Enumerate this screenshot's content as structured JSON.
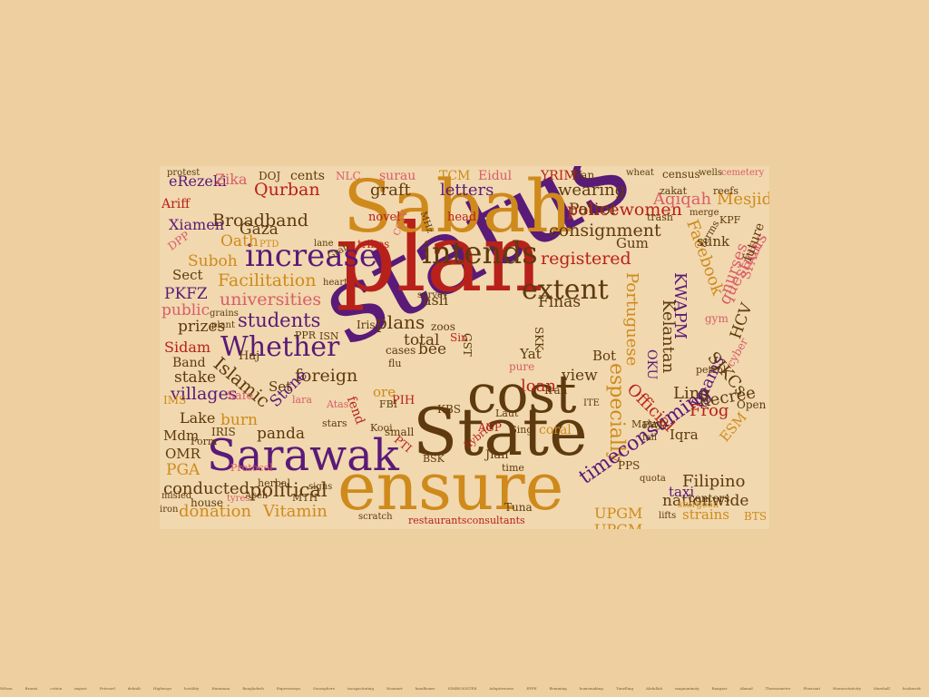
{
  "palette": {
    "background": "#edcfa0",
    "purple": "#5a1a78",
    "red": "#b8211a",
    "gold": "#cf8a1c",
    "brown": "#5e3a0e",
    "pink": "#d95d6b",
    "tan": "#9a7a50"
  },
  "cloud_words": [
    {
      "t": "status",
      "c": "purple"
    },
    {
      "t": "plan",
      "c": "red"
    },
    {
      "t": "Sabah",
      "c": "gold"
    },
    {
      "t": "State",
      "c": "brown"
    },
    {
      "t": "ensure",
      "c": "gold"
    },
    {
      "t": "cost",
      "c": "brown"
    },
    {
      "t": "Sarawak",
      "c": "purple"
    },
    {
      "t": "increase",
      "c": "purple"
    },
    {
      "t": "intends",
      "c": "brown"
    },
    {
      "t": "Whether",
      "c": "purple"
    },
    {
      "t": "extent",
      "c": "brown"
    },
    {
      "t": "especially",
      "c": "gold"
    },
    {
      "t": "timeconsuming",
      "c": "purple"
    },
    {
      "t": "Broadband",
      "c": "brown"
    },
    {
      "t": "Facilitation",
      "c": "gold"
    },
    {
      "t": "students",
      "c": "purple"
    },
    {
      "t": "universities",
      "c": "pink"
    },
    {
      "t": "registered",
      "c": "red"
    },
    {
      "t": "consignment",
      "c": "brown"
    },
    {
      "t": "policewomen",
      "c": "red"
    },
    {
      "t": "nationwide",
      "c": "brown"
    },
    {
      "t": "political",
      "c": "brown"
    },
    {
      "t": "conducted",
      "c": "brown"
    },
    {
      "t": "donation",
      "c": "gold"
    },
    {
      "t": "Vitamin",
      "c": "gold"
    },
    {
      "t": "Islamic",
      "c": "brown"
    },
    {
      "t": "foreign",
      "c": "brown"
    },
    {
      "t": "villages",
      "c": "purple"
    },
    {
      "t": "Filipino",
      "c": "brown"
    },
    {
      "t": "Portuguese",
      "c": "gold"
    },
    {
      "t": "Kelantan",
      "c": "brown"
    },
    {
      "t": "Facebook",
      "c": "gold"
    },
    {
      "t": "questions",
      "c": "pink"
    },
    {
      "t": "KWAPM",
      "c": "purple"
    },
    {
      "t": "Official",
      "c": "red"
    },
    {
      "t": "decree",
      "c": "brown"
    },
    {
      "t": "Imams",
      "c": "purple"
    },
    {
      "t": "SJKCs",
      "c": "brown"
    },
    {
      "t": "Mesjid",
      "c": "gold"
    },
    {
      "t": "Aqiqah",
      "c": "pink"
    },
    {
      "t": "wearing",
      "c": "brown"
    },
    {
      "t": "letters",
      "c": "purple"
    },
    {
      "t": "graft",
      "c": "brown"
    },
    {
      "t": "Qurban",
      "c": "red"
    },
    {
      "t": "Xiamen",
      "c": "purple"
    },
    {
      "t": "eRezeki",
      "c": "purple"
    },
    {
      "t": "Zika",
      "c": "pink"
    },
    {
      "t": "Oath",
      "c": "gold"
    },
    {
      "t": "Gaza",
      "c": "brown"
    },
    {
      "t": "Suboh",
      "c": "gold"
    },
    {
      "t": "PKFZ",
      "c": "purple"
    },
    {
      "t": "Sect",
      "c": "brown"
    },
    {
      "t": "public",
      "c": "pink"
    },
    {
      "t": "prizes",
      "c": "brown"
    },
    {
      "t": "Sidam",
      "c": "red"
    },
    {
      "t": "Band",
      "c": "brown"
    },
    {
      "t": "stake",
      "c": "brown"
    },
    {
      "t": "Lake",
      "c": "brown"
    },
    {
      "t": "burn",
      "c": "gold"
    },
    {
      "t": "Mdm",
      "c": "brown"
    },
    {
      "t": "OMR",
      "c": "brown"
    },
    {
      "t": "PGA",
      "c": "gold"
    },
    {
      "t": "panda",
      "c": "brown"
    },
    {
      "t": "Stone",
      "c": "purple"
    },
    {
      "t": "total",
      "c": "brown"
    },
    {
      "t": "plans",
      "c": "brown"
    },
    {
      "t": "asli",
      "c": "brown"
    },
    {
      "t": "loan",
      "c": "red"
    },
    {
      "t": "view",
      "c": "brown"
    },
    {
      "t": "Ling",
      "c": "brown"
    },
    {
      "t": "Frog",
      "c": "red"
    },
    {
      "t": "Iqra",
      "c": "brown"
    },
    {
      "t": "taxi",
      "c": "purple"
    },
    {
      "t": "strains",
      "c": "gold"
    },
    {
      "t": "UPGM",
      "c": "gold"
    },
    {
      "t": "Patrol",
      "c": "brown"
    },
    {
      "t": "Gum",
      "c": "brown"
    },
    {
      "t": "sunk",
      "c": "brown"
    },
    {
      "t": "nurses",
      "c": "pink"
    },
    {
      "t": "HCV",
      "c": "brown"
    },
    {
      "t": "Finas",
      "c": "brown"
    },
    {
      "t": "Bot",
      "c": "brown"
    },
    {
      "t": "Yat",
      "c": "brown"
    },
    {
      "t": "ESM",
      "c": "gold"
    },
    {
      "t": "Set",
      "c": "brown"
    },
    {
      "t": "Haj",
      "c": "brown"
    },
    {
      "t": "Safe",
      "c": "pink"
    },
    {
      "t": "Ariff",
      "c": "red"
    },
    {
      "t": "surau",
      "c": "pink"
    },
    {
      "t": "cents",
      "c": "brown"
    },
    {
      "t": "TCM",
      "c": "gold"
    },
    {
      "t": "Eidul",
      "c": "pink"
    },
    {
      "t": "YRIM",
      "c": "red"
    },
    {
      "t": "Wan",
      "c": "brown"
    },
    {
      "t": "coral",
      "c": "gold"
    },
    {
      "t": "KBS",
      "c": "brown"
    },
    {
      "t": "UPGM",
      "c": "gold"
    },
    {
      "t": "Jian",
      "c": "brown"
    },
    {
      "t": "IRIS",
      "c": "brown"
    },
    {
      "t": "protest",
      "c": "brown"
    },
    {
      "t": "census",
      "c": "brown"
    },
    {
      "t": "wells",
      "c": "brown"
    },
    {
      "t": "cemetery",
      "c": "pink"
    },
    {
      "t": "wheat",
      "c": "brown"
    },
    {
      "t": "zakat",
      "c": "brown"
    },
    {
      "t": "reefs",
      "c": "brown"
    },
    {
      "t": "merge",
      "c": "brown"
    },
    {
      "t": "KPF",
      "c": "brown"
    },
    {
      "t": "head",
      "c": "red"
    },
    {
      "t": "novel",
      "c": "red"
    },
    {
      "t": "tribes",
      "c": "red"
    },
    {
      "t": "bee",
      "c": "brown"
    },
    {
      "t": "restaurantsconsultants",
      "c": "red"
    },
    {
      "t": "house",
      "c": "brown"
    },
    {
      "t": "herbal",
      "c": "brown"
    },
    {
      "t": "MTH",
      "c": "brown"
    },
    {
      "t": "iron",
      "c": "brown"
    },
    {
      "t": "Protocol",
      "c": "pink"
    },
    {
      "t": "signs",
      "c": "brown"
    },
    {
      "t": "scratch",
      "c": "brown"
    },
    {
      "t": "BTS",
      "c": "gold"
    },
    {
      "t": "lifts",
      "c": "brown"
    },
    {
      "t": "centers",
      "c": "brown"
    },
    {
      "t": "sturgeon",
      "c": "gold"
    },
    {
      "t": "PPS",
      "c": "brown"
    },
    {
      "t": "cyber",
      "c": "pink"
    },
    {
      "t": "SPAH",
      "c": "pink"
    },
    {
      "t": "future",
      "c": "brown"
    },
    {
      "t": "gym",
      "c": "pink"
    },
    {
      "t": "Open",
      "c": "brown"
    },
    {
      "t": "NLC",
      "c": "pink"
    },
    {
      "t": "DOJ",
      "c": "brown"
    },
    {
      "t": "CCTV",
      "c": "pink"
    },
    {
      "t": "MHz",
      "c": "brown"
    },
    {
      "t": "DPP",
      "c": "pink"
    },
    {
      "t": "PTD",
      "c": "gold"
    },
    {
      "t": "lane",
      "c": "brown"
    },
    {
      "t": "Grab",
      "c": "brown"
    },
    {
      "t": "zoos",
      "c": "brown"
    },
    {
      "t": "Sin",
      "c": "red"
    },
    {
      "t": "cases",
      "c": "brown"
    },
    {
      "t": "flu",
      "c": "brown"
    },
    {
      "t": "ore",
      "c": "gold"
    },
    {
      "t": "fend",
      "c": "red"
    },
    {
      "t": "PIH",
      "c": "red"
    },
    {
      "t": "FBI",
      "c": "brown"
    },
    {
      "t": "PTI",
      "c": "red"
    },
    {
      "t": "BSK",
      "c": "brown"
    },
    {
      "t": "ACP",
      "c": "red"
    },
    {
      "t": "Ging",
      "c": "brown"
    },
    {
      "t": "Laut",
      "c": "brown"
    },
    {
      "t": "Iran",
      "c": "brown"
    },
    {
      "t": "ITE",
      "c": "brown"
    },
    {
      "t": "Iris",
      "c": "brown"
    },
    {
      "t": "GST",
      "c": "brown"
    },
    {
      "t": "PPR",
      "c": "brown"
    },
    {
      "t": "ISN",
      "c": "brown"
    },
    {
      "t": "Kooi",
      "c": "brown"
    },
    {
      "t": "Atas",
      "c": "pink"
    },
    {
      "t": "lara",
      "c": "pink"
    },
    {
      "t": "stars",
      "c": "brown"
    },
    {
      "t": "small",
      "c": "brown"
    },
    {
      "t": "Form",
      "c": "brown"
    },
    {
      "t": "tyres",
      "c": "pink"
    },
    {
      "t": "Aceh",
      "c": "brown"
    },
    {
      "t": "misled",
      "c": "brown"
    },
    {
      "t": "Tuna",
      "c": "brown"
    },
    {
      "t": "SKK",
      "c": "brown"
    },
    {
      "t": "survey",
      "c": "brown"
    },
    {
      "t": "OKU",
      "c": "purple"
    },
    {
      "t": "IMS",
      "c": "gold"
    },
    {
      "t": "trash",
      "c": "brown"
    },
    {
      "t": "terms",
      "c": "brown"
    },
    {
      "t": "PWD",
      "c": "brown"
    },
    {
      "t": "petrol",
      "c": "brown"
    },
    {
      "t": "pure",
      "c": "pink"
    },
    {
      "t": "time",
      "c": "brown"
    },
    {
      "t": "fall",
      "c": "brown"
    },
    {
      "t": "quota",
      "c": "brown"
    },
    {
      "t": "Malay",
      "c": "brown"
    },
    {
      "t": "hybrid",
      "c": "red"
    },
    {
      "t": "plant",
      "c": "brown"
    },
    {
      "t": "grains",
      "c": "brown"
    },
    {
      "t": "heart",
      "c": "brown"
    }
  ],
  "strip_words": [
    "Wilson",
    "Brunei",
    "cotton",
    "import",
    "Petronel",
    "default",
    "Highways",
    "hostility",
    "Hanuman",
    "Bangladesh",
    "Expressways",
    "Sonosphere",
    "incapacitating",
    "Hosmart",
    "bandboxes",
    "SIMBIOSISTER",
    "Adoptiveness",
    "EFPE",
    "flemming",
    "homemaking",
    "Tunelling",
    "Abdullah",
    "magnanimity",
    "Bangsar",
    "Ahmad",
    "Thermometer",
    "Pheasant",
    "Homeostaticity",
    "Marshall",
    "bookwork",
    "Mahathir",
    "scholarship",
    "unhygienic",
    "Kuantan",
    "oneoff",
    "Pakistan",
    "Khazanah",
    "Muhyiddin",
    "Hishammuddin",
    "Sunshine",
    "BEFA",
    "surfacing",
    "Sulawesi",
    "Puteri",
    "Ramadan",
    "Labuan",
    "Tazio",
    "ladies",
    "CORBnE"
  ]
}
